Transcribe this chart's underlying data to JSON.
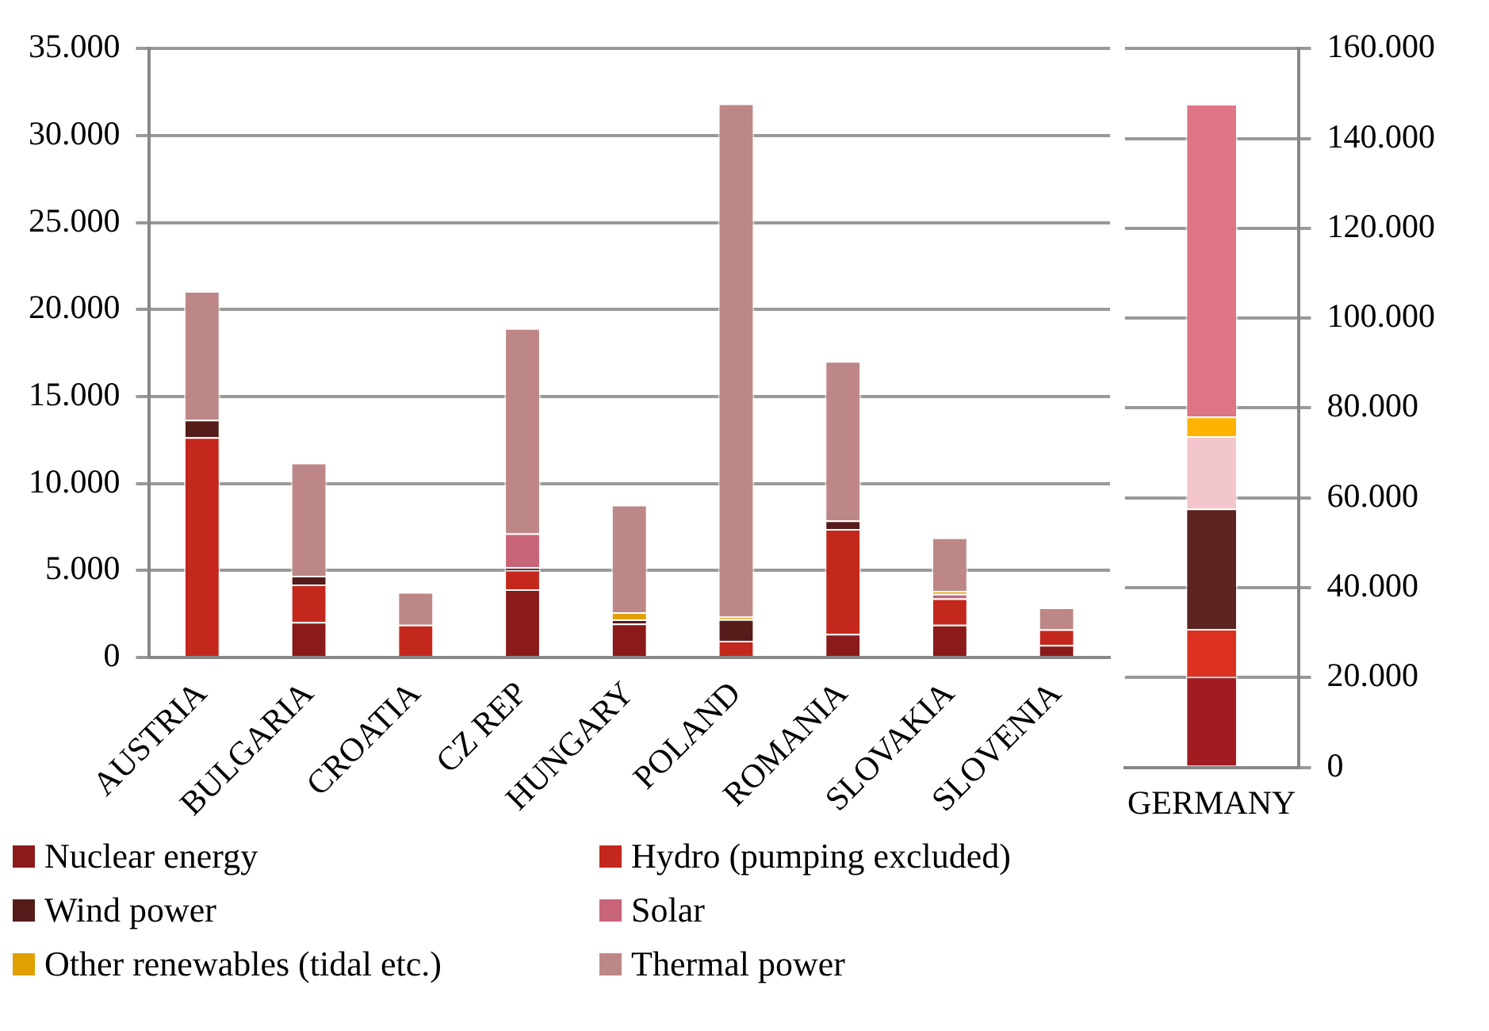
{
  "chart_data": [
    {
      "type": "bar",
      "stacked": true,
      "categories": [
        "AUSTRIA",
        "BULGARIA",
        "CROATIA",
        "CZ REP",
        "HUNGARY",
        "POLAND",
        "ROMANIA",
        "SLOVAKIA",
        "SLOVENIA"
      ],
      "series": [
        {
          "name": "Nuclear energy",
          "color": "#8b1a1a",
          "values": [
            0,
            2040,
            0,
            3920,
            1950,
            0,
            1350,
            1880,
            720
          ]
        },
        {
          "name": "Hydro (pumping excluded)",
          "color": "#c4281c",
          "values": [
            12660,
            2150,
            1880,
            1100,
            0,
            950,
            6030,
            1510,
            890
          ]
        },
        {
          "name": "Wind power",
          "color": "#561c1a",
          "values": [
            1000,
            500,
            0,
            170,
            230,
            1250,
            490,
            0,
            0
          ]
        },
        {
          "name": "Solar",
          "color": "#c86478",
          "values": [
            0,
            0,
            0,
            1940,
            0,
            0,
            0,
            260,
            0
          ]
        },
        {
          "name": "Other renewables (tidal etc.)",
          "color": "#e0a000",
          "values": [
            0,
            0,
            0,
            0,
            420,
            140,
            0,
            170,
            0
          ]
        },
        {
          "name": "Thermal power",
          "color": "#be8787",
          "values": [
            7400,
            6500,
            1880,
            11800,
            6170,
            29500,
            9170,
            3070,
            1260
          ]
        }
      ],
      "ylim": [
        0,
        35000
      ],
      "yticks": [
        {
          "value": 0,
          "label": "0"
        },
        {
          "value": 5000,
          "label": "5.000"
        },
        {
          "value": 10000,
          "label": "10.000"
        },
        {
          "value": 15000,
          "label": "15.000"
        },
        {
          "value": 20000,
          "label": "20.000"
        },
        {
          "value": 25000,
          "label": "25.000"
        },
        {
          "value": 30000,
          "label": "30.000"
        },
        {
          "value": 35000,
          "label": "35.000"
        }
      ],
      "grid": true,
      "legend": "bottom"
    },
    {
      "type": "bar",
      "stacked": true,
      "categories": [
        "GERMANY"
      ],
      "series": [
        {
          "color": "#a01c20",
          "axis": "y2",
          "values": [
            20200
          ]
        },
        {
          "color": "#dc3020",
          "axis": "y2",
          "values": [
            10600
          ]
        },
        {
          "color": "#5c2320",
          "axis": "y2",
          "values": [
            26800
          ]
        },
        {
          "color": "#f2c6cc",
          "axis": "y2",
          "values": [
            16100
          ]
        },
        {
          "color": "#ffb300",
          "axis": "y2",
          "values": [
            4400
          ]
        },
        {
          "color": "#dd7585",
          "axis": "y2",
          "values": [
            69600
          ]
        }
      ],
      "y2lim": [
        0,
        160000
      ],
      "y2ticks": [
        {
          "value": 0,
          "label": "0"
        },
        {
          "value": 20000,
          "label": "20.000"
        },
        {
          "value": 40000,
          "label": "40.000"
        },
        {
          "value": 60000,
          "label": "60.000"
        },
        {
          "value": 80000,
          "label": "80.000"
        },
        {
          "value": 100000,
          "label": "100.000"
        },
        {
          "value": 120000,
          "label": "120.000"
        },
        {
          "value": 140000,
          "label": "140.000"
        },
        {
          "value": 160000,
          "label": "160.000"
        }
      ],
      "grid": true
    }
  ]
}
